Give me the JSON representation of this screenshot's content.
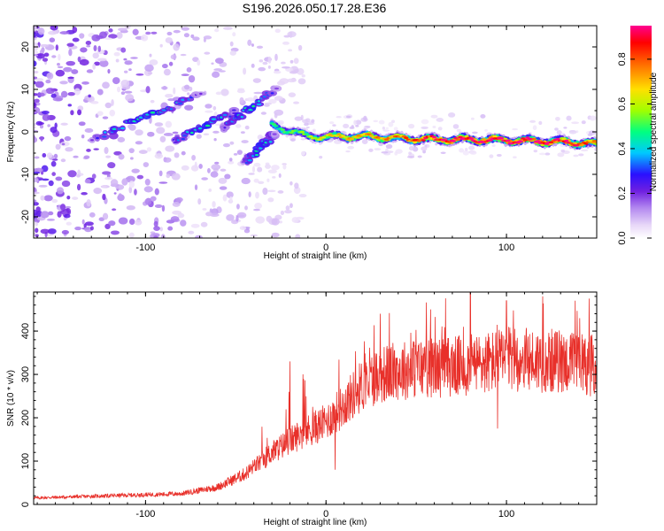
{
  "title": "S196.2026.050.17.28.E36",
  "colors": {
    "snr_line": "#e8302a",
    "frame": "#000000",
    "colorbar_stops": [
      "#ffffff",
      "#e8d8f8",
      "#b48af0",
      "#7020e0",
      "#2a10ff",
      "#00c8ff",
      "#00ff80",
      "#a0ff00",
      "#ffe000",
      "#ff6a00",
      "#ff0000",
      "#ff0090"
    ]
  },
  "chart_data": [
    {
      "type": "heatmap",
      "title": "S196.2026.050.17.28.E36",
      "xlabel": "Height of straight line (km)",
      "ylabel": "Frequency (Hz)",
      "xlim": [
        -162,
        150
      ],
      "ylim": [
        -25,
        25
      ],
      "x_ticks": [
        -100,
        0,
        100
      ],
      "x_tick_labels": [
        "-100",
        "0",
        "100"
      ],
      "y_ticks": [
        -20,
        -10,
        0,
        10,
        20
      ],
      "y_tick_labels": [
        "-20",
        "-10",
        "0",
        "10",
        "20"
      ],
      "colorbar": {
        "label": "Normalized spectral amplitude",
        "range": [
          0,
          0.95
        ],
        "ticks": [
          0.0,
          0.2,
          0.4,
          0.6,
          0.8
        ],
        "tick_labels": [
          "0.0",
          "0.2",
          "0.4",
          "0.6",
          "0.8"
        ]
      },
      "ridge": [
        {
          "x": -30,
          "y": 1.5,
          "amp": 0.45
        },
        {
          "x": -10,
          "y": -1.0,
          "amp": 0.55
        },
        {
          "x": 0,
          "y": -1.2,
          "amp": 0.65
        },
        {
          "x": 20,
          "y": -1.0,
          "amp": 0.7
        },
        {
          "x": 40,
          "y": -1.5,
          "amp": 0.75
        },
        {
          "x": 60,
          "y": -1.8,
          "amp": 0.88
        },
        {
          "x": 80,
          "y": -1.8,
          "amp": 0.92
        },
        {
          "x": 100,
          "y": -2.0,
          "amp": 0.95
        },
        {
          "x": 120,
          "y": -2.2,
          "amp": 0.92
        },
        {
          "x": 140,
          "y": -2.5,
          "amp": 0.85
        },
        {
          "x": 150,
          "y": -3.0,
          "amp": 0.7
        }
      ],
      "branches": [
        {
          "x0": -130,
          "y0": -1.5,
          "x1": -70,
          "y1": 8.5
        },
        {
          "x0": -85,
          "y0": -2.0,
          "x1": -50,
          "y1": 5.0
        },
        {
          "x0": -58,
          "y0": 0.5,
          "x1": -28,
          "y1": 10.0
        },
        {
          "x0": -45,
          "y0": -7.5,
          "x1": -28,
          "y1": 0.0
        }
      ]
    },
    {
      "type": "line",
      "xlabel": "Height of straight line (km)",
      "ylabel": "SNR (10 * v/v)",
      "xlim": [
        -162,
        150
      ],
      "ylim": [
        0,
        490
      ],
      "x_ticks": [
        -100,
        0,
        100
      ],
      "x_tick_labels": [
        "-100",
        "0",
        "100"
      ],
      "y_ticks": [
        0,
        100,
        200,
        300,
        400
      ],
      "y_tick_labels": [
        "0",
        "100",
        "200",
        "300",
        "400"
      ],
      "baseline": [
        {
          "x": -162,
          "y": 15
        },
        {
          "x": -120,
          "y": 20
        },
        {
          "x": -80,
          "y": 25
        },
        {
          "x": -60,
          "y": 40
        },
        {
          "x": -45,
          "y": 70
        },
        {
          "x": -30,
          "y": 120
        },
        {
          "x": -15,
          "y": 160
        },
        {
          "x": 0,
          "y": 190
        },
        {
          "x": 10,
          "y": 230
        },
        {
          "x": 20,
          "y": 275
        },
        {
          "x": 30,
          "y": 300
        },
        {
          "x": 50,
          "y": 315
        },
        {
          "x": 80,
          "y": 320
        },
        {
          "x": 100,
          "y": 335
        },
        {
          "x": 130,
          "y": 330
        },
        {
          "x": 150,
          "y": 320
        }
      ],
      "peaks": [
        {
          "x": -20,
          "y": 330
        },
        {
          "x": 30,
          "y": 440
        },
        {
          "x": 58,
          "y": 450
        },
        {
          "x": 80,
          "y": 490
        },
        {
          "x": 100,
          "y": 470
        },
        {
          "x": 120,
          "y": 480
        },
        {
          "x": 138,
          "y": 470
        }
      ],
      "dips": [
        {
          "x": 5,
          "y": 80
        },
        {
          "x": 95,
          "y": 175
        }
      ]
    }
  ]
}
